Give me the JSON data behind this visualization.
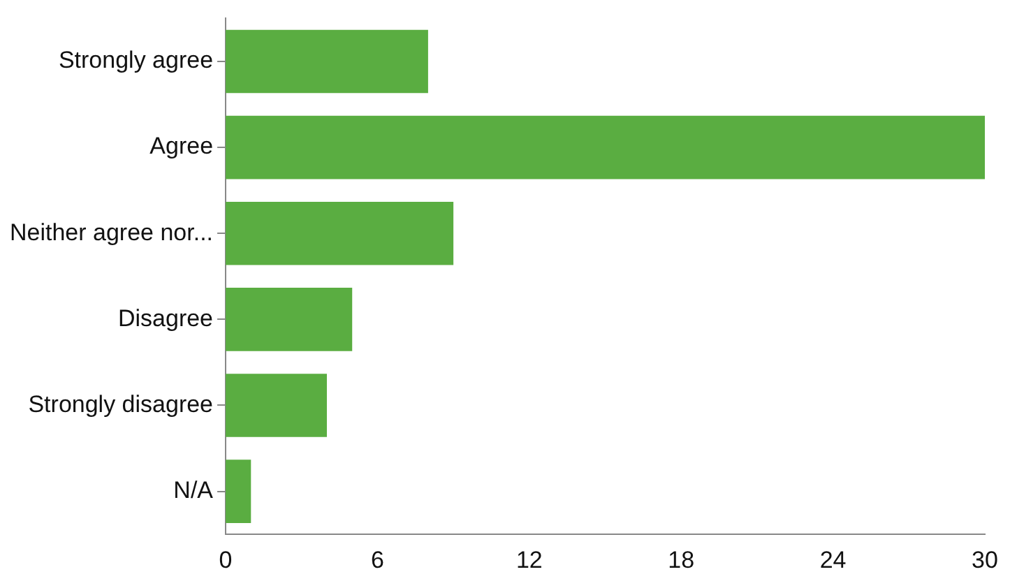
{
  "chart_data": {
    "type": "bar",
    "orientation": "horizontal",
    "categories": [
      "Strongly agree",
      "Agree",
      "Neither agree nor...",
      "Disagree",
      "Strongly disagree",
      "N/A"
    ],
    "values": [
      8,
      30,
      9,
      5,
      4,
      1
    ],
    "color": "#5aad41",
    "xlim": [
      0,
      30
    ],
    "xticks": [
      0,
      6,
      12,
      18,
      24,
      30
    ],
    "grid": false,
    "legend": false
  }
}
